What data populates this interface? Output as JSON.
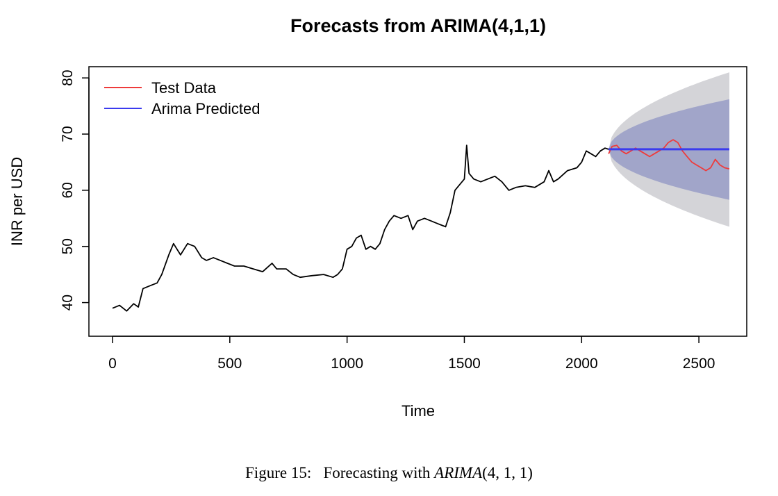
{
  "caption": {
    "prefix": "Figure 15:",
    "text": "Forecasting with",
    "model_name": "ARIMA",
    "model_order": "(4, 1, 1)"
  },
  "chart_data": {
    "type": "line",
    "title": "Forecasts from ARIMA(4,1,1)",
    "xlabel": "Time",
    "ylabel": "INR per USD",
    "xlim": [
      0,
      2630
    ],
    "ylim": [
      35,
      82
    ],
    "xticks": [
      0,
      500,
      1000,
      1500,
      2000,
      2500
    ],
    "yticks": [
      40,
      50,
      60,
      70,
      80
    ],
    "grid": false,
    "legend_position": "top-left",
    "legend": [
      {
        "label": "Test Data",
        "color": "#ee3b3b"
      },
      {
        "label": "Arima Predicted",
        "color": "#3b3bee"
      }
    ],
    "series": [
      {
        "name": "",
        "color": "#000000",
        "x": [
          0,
          30,
          60,
          90,
          110,
          130,
          160,
          190,
          210,
          240,
          260,
          290,
          320,
          350,
          380,
          400,
          430,
          460,
          490,
          520,
          560,
          600,
          640,
          680,
          700,
          740,
          770,
          800,
          850,
          900,
          940,
          960,
          980,
          1000,
          1020,
          1040,
          1060,
          1080,
          1100,
          1120,
          1140,
          1160,
          1180,
          1200,
          1230,
          1260,
          1280,
          1300,
          1330,
          1360,
          1390,
          1420,
          1440,
          1460,
          1480,
          1500,
          1510,
          1520,
          1540,
          1570,
          1600,
          1630,
          1660,
          1690,
          1720,
          1760,
          1800,
          1840,
          1860,
          1880,
          1900,
          1940,
          1980,
          2000,
          2020,
          2040,
          2060,
          2080,
          2100,
          2115
        ],
        "values": [
          39.0,
          39.5,
          38.5,
          39.8,
          39.2,
          42.5,
          43.0,
          43.5,
          45.0,
          48.5,
          50.5,
          48.5,
          50.5,
          50.0,
          48.0,
          47.5,
          48.0,
          47.5,
          47.0,
          46.5,
          46.5,
          46.0,
          45.5,
          47.0,
          46.0,
          46.0,
          45.0,
          44.5,
          44.8,
          45.0,
          44.5,
          45.0,
          46.0,
          49.5,
          50.0,
          51.5,
          52.0,
          49.5,
          50.0,
          49.5,
          50.5,
          53.0,
          54.5,
          55.5,
          55.0,
          55.5,
          53.0,
          54.5,
          55.0,
          54.5,
          54.0,
          53.5,
          56.0,
          60.0,
          61.0,
          62.0,
          68.0,
          63.0,
          62.0,
          61.5,
          62.0,
          62.5,
          61.5,
          60.0,
          60.5,
          60.8,
          60.5,
          61.5,
          63.5,
          61.5,
          62.0,
          63.5,
          64.0,
          65.0,
          67.0,
          66.5,
          66.0,
          67.0,
          67.5,
          67.3
        ]
      },
      {
        "name": "Test Data",
        "color": "#ee3b3b",
        "x": [
          2115,
          2130,
          2150,
          2170,
          2190,
          2210,
          2230,
          2250,
          2270,
          2290,
          2310,
          2330,
          2350,
          2370,
          2390,
          2410,
          2430,
          2450,
          2470,
          2490,
          2510,
          2530,
          2550,
          2570,
          2590,
          2610,
          2630
        ],
        "values": [
          66.5,
          67.8,
          68.0,
          67.0,
          66.5,
          67.0,
          67.5,
          67.0,
          66.5,
          66.0,
          66.5,
          67.0,
          67.5,
          68.5,
          69.0,
          68.5,
          67.0,
          66.0,
          65.0,
          64.5,
          64.0,
          63.5,
          64.0,
          65.5,
          64.5,
          64.0,
          63.8
        ]
      },
      {
        "name": "Arima Predicted",
        "color": "#3b3bee",
        "x": [
          2115,
          2630
        ],
        "values": [
          67.3,
          67.3
        ]
      }
    ],
    "forecast_intervals": [
      {
        "level": "95%",
        "color": "#d4d4d8",
        "x": [
          2115,
          2630
        ],
        "lower_end": 53.5,
        "upper_end": 81.0,
        "center": 67.3
      },
      {
        "level": "80%",
        "color": "#a1a5c9",
        "x": [
          2115,
          2630
        ],
        "lower_end": 58.3,
        "upper_end": 76.2,
        "center": 67.3
      }
    ]
  }
}
